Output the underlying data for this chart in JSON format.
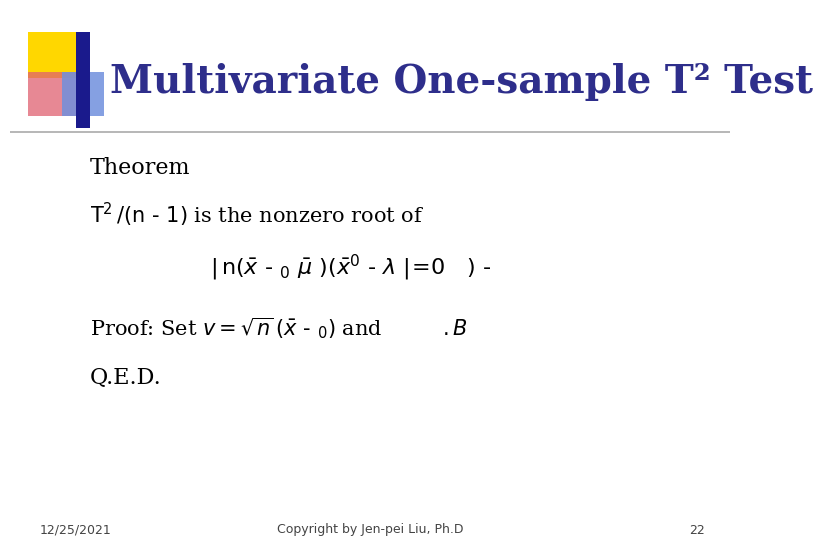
{
  "title": "Multivariate One-sample T² Test",
  "title_color": "#2E2E8B",
  "bg_color": "#FFFFFF",
  "footer_date": "12/25/2021",
  "footer_copyright": "Copyright by Jen-pei Liu, Ph.D",
  "footer_page": "22",
  "accent_yellow": "#FFD700",
  "accent_blue_dark": "#1A1A8C",
  "accent_red": "#E06070",
  "accent_blue_light": "#7090DD",
  "line_color": "#AAAAAA",
  "body_color": "#000000"
}
